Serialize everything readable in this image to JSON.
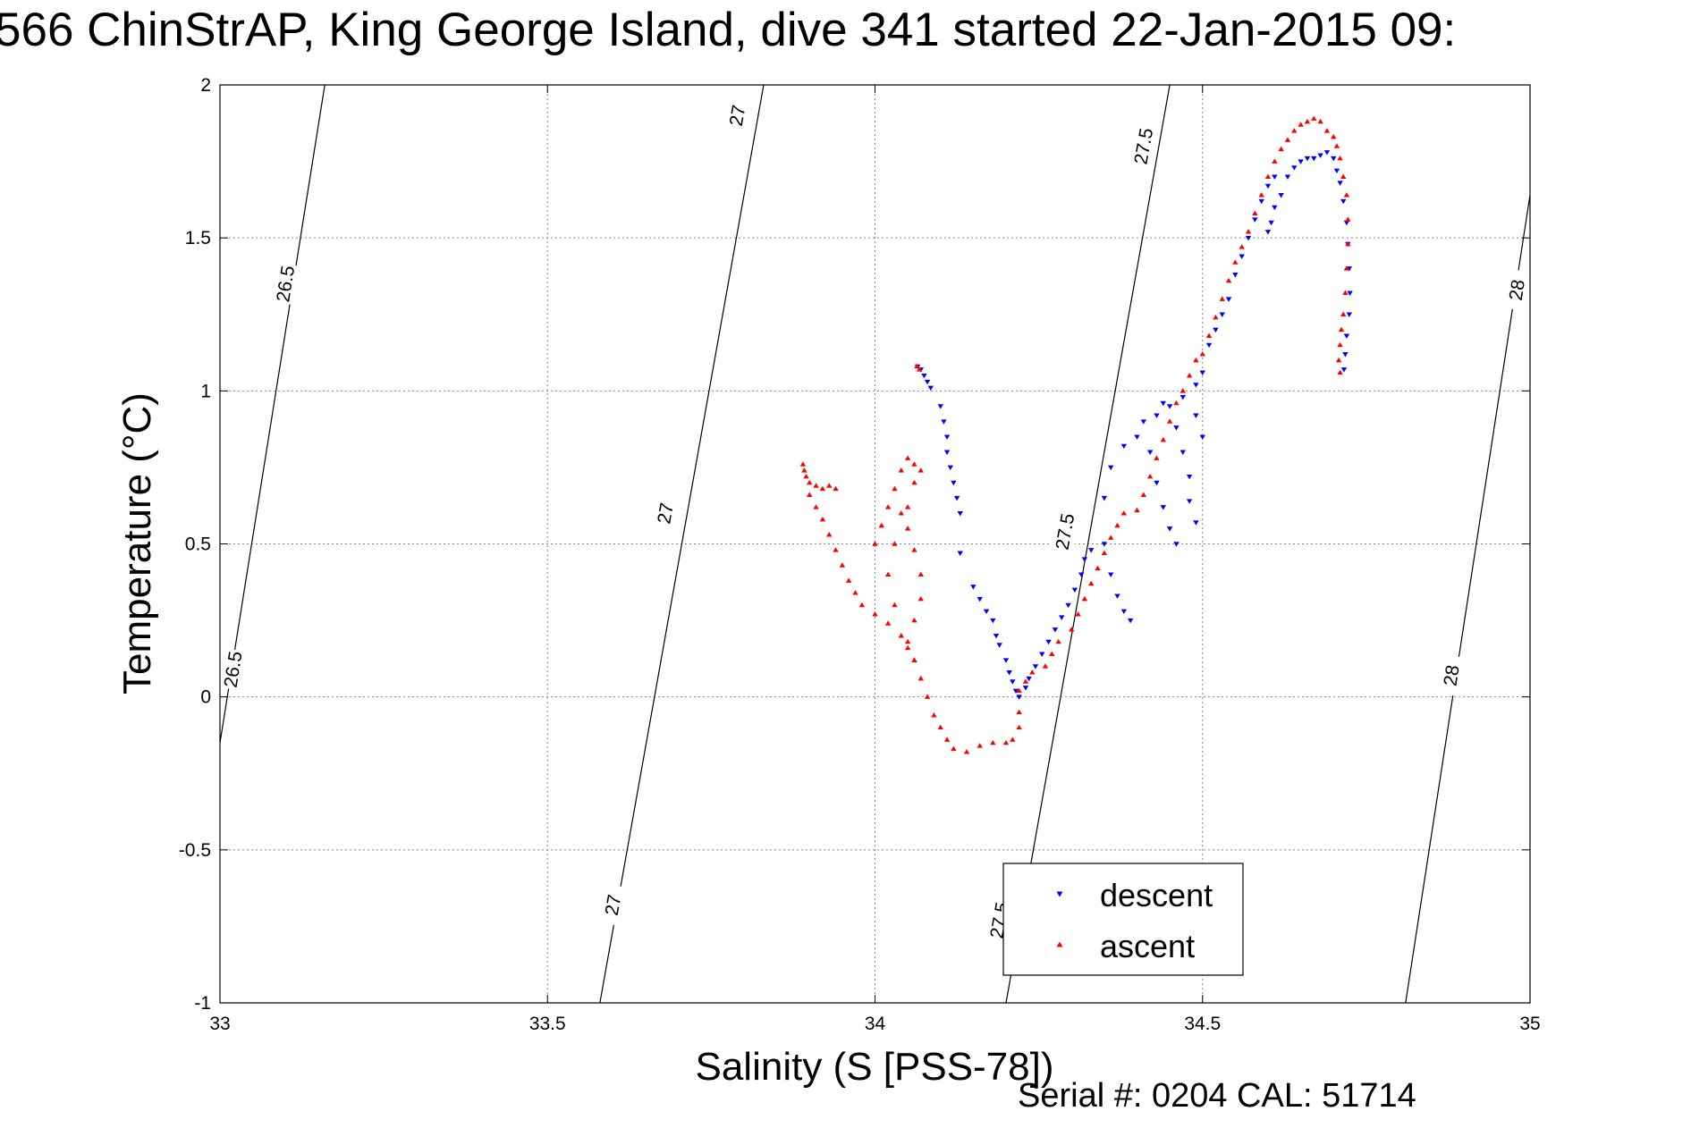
{
  "title": "566 ChinStrAP, King George Island, dive 341 started 22-Jan-2015 09:",
  "footer": "Serial #: 0204  CAL: 51714",
  "chart_data": {
    "type": "scatter",
    "title": "566 ChinStrAP, King George Island, dive 341 started 22-Jan-2015 09:",
    "xlabel": "Salinity (S [PSS-78])",
    "ylabel": "Temperature (°C)",
    "xlim": [
      33,
      35
    ],
    "ylim": [
      -1,
      2
    ],
    "xticks": [
      33,
      33.5,
      34,
      34.5,
      35
    ],
    "yticks": [
      -1,
      -0.5,
      0,
      0.5,
      1,
      1.5,
      2
    ],
    "xtick_labels": [
      "33",
      "33.5",
      "34",
      "34.5",
      "35"
    ],
    "ytick_labels": [
      "-1",
      "-0.5",
      "0",
      "0.5",
      "1",
      "1.5",
      "2"
    ],
    "grid": true,
    "legend_position": "bottom-center",
    "density_contours": [
      {
        "label": "26.5",
        "points": [
          [
            33.0,
            -0.15
          ],
          [
            33.16,
            2.0
          ]
        ],
        "label_at": [
          [
            33.1,
            1.35
          ],
          [
            33.02,
            0.09
          ]
        ]
      },
      {
        "label": "27",
        "points": [
          [
            33.58,
            -1.0
          ],
          [
            33.83,
            2.0
          ]
        ],
        "label_at": [
          [
            33.79,
            1.9
          ],
          [
            33.68,
            0.6
          ],
          [
            33.6,
            -0.68
          ]
        ]
      },
      {
        "label": "27.5",
        "points": [
          [
            34.2,
            -1.0
          ],
          [
            34.45,
            2.0
          ]
        ],
        "label_at": [
          [
            34.41,
            1.8
          ],
          [
            34.29,
            0.54
          ],
          [
            34.19,
            -0.73
          ]
        ]
      },
      {
        "label": "28",
        "points": [
          [
            34.81,
            -1.0
          ],
          [
            35.0,
            1.64
          ]
        ],
        "label_at": [
          [
            34.98,
            1.33
          ],
          [
            34.88,
            0.07
          ]
        ]
      }
    ],
    "series": [
      {
        "name": "descent",
        "color": "#0000ff",
        "marker": "triangle-down",
        "points": [
          [
            34.065,
            1.08
          ],
          [
            34.07,
            1.07
          ],
          [
            34.075,
            1.05
          ],
          [
            34.08,
            1.03
          ],
          [
            34.085,
            1.01
          ],
          [
            34.1,
            0.95
          ],
          [
            34.105,
            0.9
          ],
          [
            34.11,
            0.85
          ],
          [
            34.11,
            0.8
          ],
          [
            34.115,
            0.75
          ],
          [
            34.12,
            0.7
          ],
          [
            34.125,
            0.65
          ],
          [
            34.13,
            0.6
          ],
          [
            34.13,
            0.47
          ],
          [
            34.15,
            0.36
          ],
          [
            34.16,
            0.32
          ],
          [
            34.17,
            0.28
          ],
          [
            34.18,
            0.25
          ],
          [
            34.185,
            0.2
          ],
          [
            34.19,
            0.17
          ],
          [
            34.2,
            0.12
          ],
          [
            34.205,
            0.08
          ],
          [
            34.21,
            0.05
          ],
          [
            34.215,
            0.02
          ],
          [
            34.22,
            0.0
          ],
          [
            34.23,
            0.03
          ],
          [
            34.235,
            0.06
          ],
          [
            34.245,
            0.1
          ],
          [
            34.255,
            0.14
          ],
          [
            34.265,
            0.18
          ],
          [
            34.275,
            0.22
          ],
          [
            34.285,
            0.26
          ],
          [
            34.295,
            0.3
          ],
          [
            34.305,
            0.35
          ],
          [
            34.315,
            0.4
          ],
          [
            34.32,
            0.45
          ],
          [
            34.33,
            0.48
          ],
          [
            34.35,
            0.5
          ],
          [
            34.36,
            0.4
          ],
          [
            34.37,
            0.33
          ],
          [
            34.38,
            0.28
          ],
          [
            34.39,
            0.25
          ],
          [
            34.35,
            0.65
          ],
          [
            34.36,
            0.75
          ],
          [
            34.38,
            0.82
          ],
          [
            34.4,
            0.85
          ],
          [
            34.42,
            0.8
          ],
          [
            34.43,
            0.7
          ],
          [
            34.44,
            0.62
          ],
          [
            34.45,
            0.55
          ],
          [
            34.46,
            0.5
          ],
          [
            34.41,
            0.9
          ],
          [
            34.43,
            0.92
          ],
          [
            34.45,
            0.95
          ],
          [
            34.46,
            0.88
          ],
          [
            34.47,
            0.8
          ],
          [
            34.48,
            0.72
          ],
          [
            34.48,
            0.64
          ],
          [
            34.49,
            0.57
          ],
          [
            34.44,
            0.96
          ],
          [
            34.47,
            0.98
          ],
          [
            34.49,
            1.02
          ],
          [
            34.5,
            1.06
          ],
          [
            34.49,
            0.92
          ],
          [
            34.5,
            0.85
          ],
          [
            34.51,
            1.15
          ],
          [
            34.52,
            1.2
          ],
          [
            34.53,
            1.25
          ],
          [
            34.54,
            1.3
          ],
          [
            34.55,
            1.38
          ],
          [
            34.56,
            1.44
          ],
          [
            34.57,
            1.5
          ],
          [
            34.58,
            1.56
          ],
          [
            34.59,
            1.62
          ],
          [
            34.6,
            1.67
          ],
          [
            34.61,
            1.7
          ],
          [
            34.6,
            1.52
          ],
          [
            34.605,
            1.55
          ],
          [
            34.61,
            1.6
          ],
          [
            34.62,
            1.64
          ],
          [
            34.63,
            1.7
          ],
          [
            34.64,
            1.73
          ],
          [
            34.65,
            1.75
          ],
          [
            34.66,
            1.76
          ],
          [
            34.67,
            1.76
          ],
          [
            34.68,
            1.77
          ],
          [
            34.69,
            1.78
          ],
          [
            34.7,
            1.76
          ],
          [
            34.705,
            1.72
          ],
          [
            34.71,
            1.68
          ],
          [
            34.715,
            1.62
          ],
          [
            34.72,
            1.55
          ],
          [
            34.722,
            1.48
          ],
          [
            34.724,
            1.4
          ],
          [
            34.725,
            1.32
          ],
          [
            34.724,
            1.25
          ],
          [
            34.72,
            1.18
          ],
          [
            34.718,
            1.12
          ],
          [
            34.716,
            1.07
          ]
        ]
      },
      {
        "name": "ascent",
        "color": "#ff0000",
        "marker": "triangle-up",
        "points": [
          [
            34.064,
            1.08
          ],
          [
            34.068,
            1.07
          ],
          [
            33.89,
            0.76
          ],
          [
            33.892,
            0.74
          ],
          [
            33.895,
            0.72
          ],
          [
            33.9,
            0.7
          ],
          [
            33.91,
            0.69
          ],
          [
            33.92,
            0.68
          ],
          [
            33.93,
            0.69
          ],
          [
            33.94,
            0.68
          ],
          [
            33.9,
            0.66
          ],
          [
            33.91,
            0.62
          ],
          [
            33.92,
            0.58
          ],
          [
            33.93,
            0.53
          ],
          [
            33.94,
            0.48
          ],
          [
            33.95,
            0.43
          ],
          [
            33.96,
            0.38
          ],
          [
            33.97,
            0.34
          ],
          [
            33.98,
            0.3
          ],
          [
            34.0,
            0.27
          ],
          [
            34.02,
            0.24
          ],
          [
            34.04,
            0.2
          ],
          [
            34.05,
            0.16
          ],
          [
            34.06,
            0.12
          ],
          [
            34.07,
            0.06
          ],
          [
            34.08,
            0.0
          ],
          [
            34.09,
            -0.06
          ],
          [
            34.1,
            -0.1
          ],
          [
            34.11,
            -0.14
          ],
          [
            34.12,
            -0.17
          ],
          [
            34.14,
            -0.18
          ],
          [
            34.16,
            -0.16
          ],
          [
            34.18,
            -0.15
          ],
          [
            34.2,
            -0.15
          ],
          [
            34.21,
            -0.14
          ],
          [
            34.22,
            -0.1
          ],
          [
            34.22,
            -0.05
          ],
          [
            34.0,
            0.5
          ],
          [
            34.01,
            0.56
          ],
          [
            34.02,
            0.62
          ],
          [
            34.03,
            0.68
          ],
          [
            34.04,
            0.74
          ],
          [
            34.05,
            0.78
          ],
          [
            34.06,
            0.76
          ],
          [
            34.07,
            0.74
          ],
          [
            34.06,
            0.7
          ],
          [
            34.05,
            0.62
          ],
          [
            34.05,
            0.55
          ],
          [
            34.06,
            0.48
          ],
          [
            34.07,
            0.4
          ],
          [
            34.07,
            0.32
          ],
          [
            34.06,
            0.25
          ],
          [
            34.05,
            0.18
          ],
          [
            34.06,
            0.12
          ],
          [
            34.03,
            0.3
          ],
          [
            34.02,
            0.4
          ],
          [
            34.03,
            0.5
          ],
          [
            34.04,
            0.6
          ],
          [
            34.22,
            0.02
          ],
          [
            34.23,
            0.05
          ],
          [
            34.24,
            0.08
          ],
          [
            34.26,
            0.1
          ],
          [
            34.27,
            0.14
          ],
          [
            34.28,
            0.18
          ],
          [
            34.3,
            0.22
          ],
          [
            34.31,
            0.27
          ],
          [
            34.32,
            0.32
          ],
          [
            34.33,
            0.37
          ],
          [
            34.34,
            0.42
          ],
          [
            34.35,
            0.47
          ],
          [
            34.36,
            0.52
          ],
          [
            34.37,
            0.56
          ],
          [
            34.38,
            0.6
          ],
          [
            34.4,
            0.61
          ],
          [
            34.41,
            0.66
          ],
          [
            34.42,
            0.72
          ],
          [
            34.43,
            0.78
          ],
          [
            34.44,
            0.84
          ],
          [
            34.45,
            0.9
          ],
          [
            34.46,
            0.96
          ],
          [
            34.47,
            1.0
          ],
          [
            34.48,
            1.05
          ],
          [
            34.49,
            1.1
          ],
          [
            34.5,
            1.12
          ],
          [
            34.51,
            1.18
          ],
          [
            34.52,
            1.24
          ],
          [
            34.53,
            1.3
          ],
          [
            34.54,
            1.36
          ],
          [
            34.55,
            1.42
          ],
          [
            34.56,
            1.47
          ],
          [
            34.57,
            1.52
          ],
          [
            34.58,
            1.58
          ],
          [
            34.59,
            1.64
          ],
          [
            34.6,
            1.7
          ],
          [
            34.61,
            1.75
          ],
          [
            34.62,
            1.79
          ],
          [
            34.63,
            1.82
          ],
          [
            34.64,
            1.85
          ],
          [
            34.65,
            1.87
          ],
          [
            34.66,
            1.88
          ],
          [
            34.67,
            1.89
          ],
          [
            34.68,
            1.88
          ],
          [
            34.69,
            1.85
          ],
          [
            34.7,
            1.83
          ],
          [
            34.705,
            1.8
          ],
          [
            34.71,
            1.76
          ],
          [
            34.715,
            1.7
          ],
          [
            34.72,
            1.64
          ],
          [
            34.722,
            1.56
          ],
          [
            34.722,
            1.48
          ],
          [
            34.72,
            1.4
          ],
          [
            34.718,
            1.32
          ],
          [
            34.715,
            1.25
          ],
          [
            34.712,
            1.2
          ],
          [
            34.71,
            1.15
          ],
          [
            34.708,
            1.1
          ],
          [
            34.71,
            1.06
          ]
        ]
      }
    ]
  }
}
